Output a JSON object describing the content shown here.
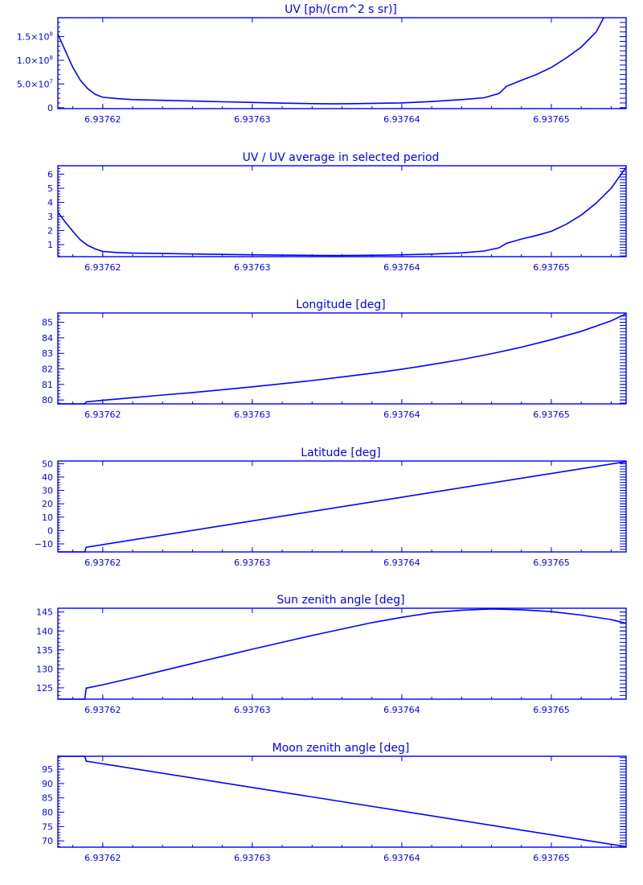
{
  "chart_data": [
    {
      "type": "line",
      "title": "UV [ph/(cm^2 s sr)]",
      "xlim": [
        6.937617,
        6.937655
      ],
      "ylim": [
        -2000000,
        190000000
      ],
      "x_ticks": [
        6.93762,
        6.93763,
        6.93764,
        6.93765
      ],
      "x_tick_labels": [
        "6.93762",
        "6.93763",
        "6.93764",
        "6.93765"
      ],
      "y_ticks": [
        0,
        50000000,
        100000000,
        150000000
      ],
      "y_tick_labels": [
        {
          "mant": "0",
          "exp": ""
        },
        {
          "mant": "5.0×10",
          "exp": "7"
        },
        {
          "mant": "1.0×10",
          "exp": "8"
        },
        {
          "mant": "1.5×10",
          "exp": "8"
        }
      ],
      "minor_y_ticks": true,
      "series": [
        {
          "x": [
            6.937617,
            6.9376175,
            6.937618,
            6.9376185,
            6.937619,
            6.9376195,
            6.93762,
            6.937621,
            6.937622,
            6.937624,
            6.937626,
            6.937628,
            6.93763,
            6.937632,
            6.937634,
            6.9376355,
            6.937637,
            6.937639,
            6.93764,
            6.937642,
            6.937644,
            6.9376455,
            6.9376465,
            6.937647,
            6.937648,
            6.937649,
            6.93765,
            6.937651,
            6.937652,
            6.937653,
            6.9376535
          ],
          "y": [
            155000000,
            120000000,
            85000000,
            58000000,
            40000000,
            28000000,
            22000000,
            19000000,
            17000000,
            15500000,
            14000000,
            12500000,
            11000000,
            9500000,
            8500000,
            8000000,
            8500000,
            9500000,
            10000000,
            13000000,
            17000000,
            21000000,
            30000000,
            45000000,
            58000000,
            70000000,
            85000000,
            105000000,
            128000000,
            160000000,
            190000000
          ]
        }
      ]
    },
    {
      "type": "line",
      "title": "UV / UV average in selected period",
      "xlim": [
        6.937617,
        6.937655
      ],
      "ylim": [
        0.15,
        6.6
      ],
      "x_ticks": [
        6.93762,
        6.93763,
        6.93764,
        6.93765
      ],
      "x_tick_labels": [
        "6.93762",
        "6.93763",
        "6.93764",
        "6.93765"
      ],
      "y_ticks": [
        1,
        2,
        3,
        4,
        5,
        6
      ],
      "y_tick_labels": [
        "1",
        "2",
        "3",
        "4",
        "5",
        "6"
      ],
      "minor_y_ticks": true,
      "series": [
        {
          "x": [
            6.937617,
            6.9376175,
            6.937618,
            6.9376185,
            6.937619,
            6.9376195,
            6.93762,
            6.937621,
            6.937622,
            6.937624,
            6.937626,
            6.937628,
            6.93763,
            6.937632,
            6.937634,
            6.9376355,
            6.937637,
            6.937639,
            6.93764,
            6.937642,
            6.937644,
            6.9376455,
            6.9376465,
            6.937647,
            6.937648,
            6.937649,
            6.93765,
            6.937651,
            6.937652,
            6.937653,
            6.937654,
            6.937655
          ],
          "y": [
            3.3,
            2.6,
            1.95,
            1.35,
            0.95,
            0.7,
            0.52,
            0.44,
            0.4,
            0.37,
            0.34,
            0.31,
            0.28,
            0.26,
            0.24,
            0.23,
            0.24,
            0.26,
            0.28,
            0.33,
            0.42,
            0.55,
            0.78,
            1.1,
            1.4,
            1.65,
            1.95,
            2.45,
            3.1,
            3.95,
            5.0,
            6.5
          ]
        }
      ]
    },
    {
      "type": "line",
      "title": "Longitude [deg]",
      "xlim": [
        6.937617,
        6.937655
      ],
      "ylim": [
        79.75,
        85.6
      ],
      "x_ticks": [
        6.93762,
        6.93763,
        6.93764,
        6.93765
      ],
      "x_tick_labels": [
        "6.93762",
        "6.93763",
        "6.93764",
        "6.93765"
      ],
      "y_ticks": [
        80,
        81,
        82,
        83,
        84,
        85
      ],
      "y_tick_labels": [
        "80",
        "81",
        "82",
        "83",
        "84",
        "85"
      ],
      "minor_y_ticks": true,
      "series": [
        {
          "x": [
            6.937617,
            6.9376188,
            6.9376189,
            6.93762,
            6.937622,
            6.937624,
            6.937626,
            6.937628,
            6.93763,
            6.937632,
            6.937634,
            6.937636,
            6.937638,
            6.93764,
            6.937642,
            6.937644,
            6.937646,
            6.937648,
            6.93765,
            6.937652,
            6.937654,
            6.937655
          ],
          "y": [
            79.75,
            79.75,
            79.88,
            79.98,
            80.15,
            80.32,
            80.48,
            80.66,
            80.85,
            81.05,
            81.25,
            81.48,
            81.72,
            81.98,
            82.28,
            82.6,
            82.98,
            83.4,
            83.88,
            84.42,
            85.1,
            85.55
          ]
        }
      ]
    },
    {
      "type": "line",
      "title": "Latitude [deg]",
      "xlim": [
        6.937617,
        6.937655
      ],
      "ylim": [
        -16,
        52
      ],
      "x_ticks": [
        6.93762,
        6.93763,
        6.93764,
        6.93765
      ],
      "x_tick_labels": [
        "6.93762",
        "6.93763",
        "6.93764",
        "6.93765"
      ],
      "y_ticks": [
        -10,
        0,
        10,
        20,
        30,
        40,
        50
      ],
      "y_tick_labels": [
        "−10",
        "0",
        "10",
        "20",
        "30",
        "40",
        "50"
      ],
      "minor_y_ticks": true,
      "series": [
        {
          "x": [
            6.937617,
            6.9376188,
            6.9376189,
            6.937655
          ],
          "y": [
            -16,
            -16,
            -12.5,
            51.5
          ]
        }
      ]
    },
    {
      "type": "line",
      "title": "Sun zenith angle [deg]",
      "xlim": [
        6.937617,
        6.937655
      ],
      "ylim": [
        122,
        146
      ],
      "x_ticks": [
        6.93762,
        6.93763,
        6.93764,
        6.93765
      ],
      "x_tick_labels": [
        "6.93762",
        "6.93763",
        "6.93764",
        "6.93765"
      ],
      "y_ticks": [
        125,
        130,
        135,
        140,
        145
      ],
      "y_tick_labels": [
        "125",
        "130",
        "135",
        "140",
        "145"
      ],
      "minor_y_ticks": true,
      "series": [
        {
          "x": [
            6.937617,
            6.9376188,
            6.9376189,
            6.93762,
            6.937622,
            6.937624,
            6.937626,
            6.937628,
            6.93763,
            6.937632,
            6.937634,
            6.937636,
            6.937638,
            6.93764,
            6.937642,
            6.937644,
            6.937646,
            6.937648,
            6.93765,
            6.937652,
            6.937654,
            6.937655
          ],
          "y": [
            122,
            122,
            124.9,
            125.8,
            127.6,
            129.5,
            131.4,
            133.3,
            135.2,
            137.0,
            138.8,
            140.5,
            142.2,
            143.6,
            144.8,
            145.5,
            145.8,
            145.6,
            145.1,
            144.2,
            143.0,
            142.0
          ]
        }
      ]
    },
    {
      "type": "line",
      "title": "Moon zenith angle [deg]",
      "xlim": [
        6.937617,
        6.937655
      ],
      "ylim": [
        67.8,
        99.5
      ],
      "x_ticks": [
        6.93762,
        6.93763,
        6.93764,
        6.93765
      ],
      "x_tick_labels": [
        "6.93762",
        "6.93763",
        "6.93764",
        "6.93765"
      ],
      "y_ticks": [
        70,
        75,
        80,
        85,
        90,
        95
      ],
      "y_tick_labels": [
        "70",
        "75",
        "80",
        "85",
        "90",
        "95"
      ],
      "minor_y_ticks": true,
      "series": [
        {
          "x": [
            6.937617,
            6.9376188,
            6.9376189,
            6.937655
          ],
          "y": [
            99.5,
            99.5,
            97.8,
            68.0
          ]
        }
      ]
    }
  ]
}
